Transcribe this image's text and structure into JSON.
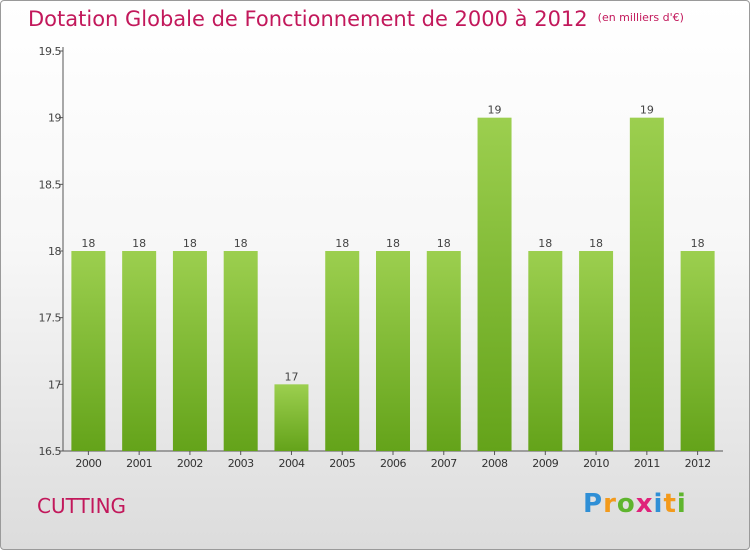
{
  "title": "Dotation Globale de Fonctionnement de 2000 à 2012",
  "unit_note": "(en milliers d'€)",
  "commune": "CUTTING",
  "logo": {
    "letters": [
      "P",
      "r",
      "o",
      "x",
      "i",
      "t",
      "i"
    ],
    "colors": [
      "#2f8fd6",
      "#f39a1b",
      "#5fb52e",
      "#e0227a",
      "#2f8fd6",
      "#f39a1b",
      "#5fb52e"
    ]
  },
  "colors": {
    "title": "#c2185b",
    "bar_top": "#9ccf4f",
    "bar_bottom": "#64a31a"
  },
  "chart_data": {
    "type": "bar",
    "categories": [
      "2000",
      "2001",
      "2002",
      "2003",
      "2004",
      "2005",
      "2006",
      "2007",
      "2008",
      "2009",
      "2010",
      "2011",
      "2012"
    ],
    "values": [
      18,
      18,
      18,
      18,
      17,
      18,
      18,
      18,
      19,
      18,
      18,
      19,
      18
    ],
    "data_labels": [
      "18",
      "18",
      "18",
      "18",
      "17",
      "18",
      "18",
      "18",
      "19",
      "18",
      "18",
      "19",
      "18"
    ],
    "y_ticks": [
      16.5,
      17,
      17.5,
      18,
      18.5,
      19,
      19.5
    ],
    "y_tick_labels": [
      "16.5",
      "17",
      "17.5",
      "18",
      "18.5",
      "19",
      "19.5"
    ],
    "ylim": [
      16.5,
      19.5
    ],
    "title": "Dotation Globale de Fonctionnement de 2000 à 2012",
    "xlabel": "",
    "ylabel": "",
    "grid": false
  }
}
